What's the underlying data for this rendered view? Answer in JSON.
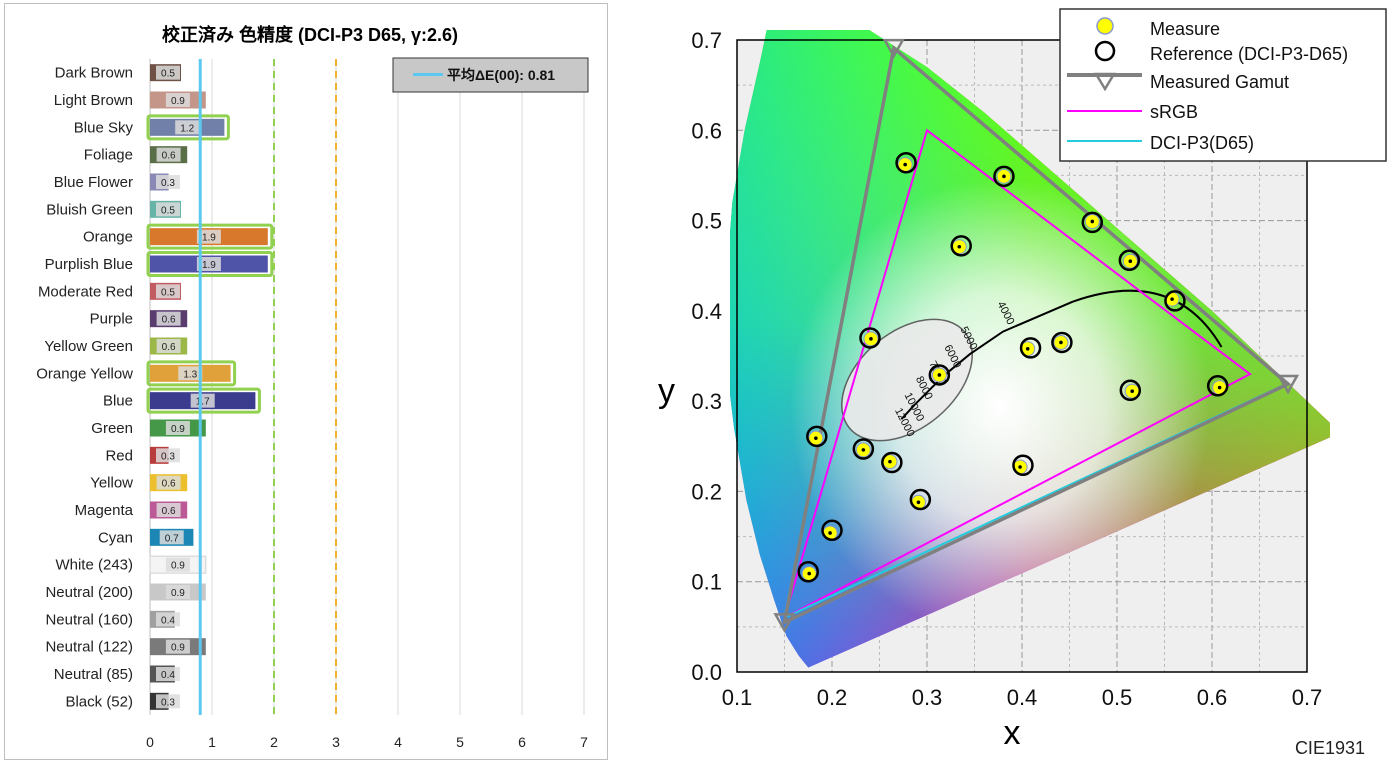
{
  "bar_chart": {
    "title": "校正済み 色精度 (DCI-P3 D65, γ:2.6)",
    "legend_label": "平均ΔE(00): 0.81",
    "mean_line_color": "#5bc8f0"
  },
  "gamut_chart": {
    "ylabel": "y",
    "xlabel": "x",
    "footer": "CIE1931",
    "legend": [
      {
        "name": "Measure",
        "icon": "yellow-dot-icon"
      },
      {
        "name": "Reference (DCI-P3-D65)",
        "icon": "black-circle-icon"
      },
      {
        "name": "Measured Gamut",
        "icon": "triangle-line-icon"
      },
      {
        "name": "sRGB",
        "icon": "magenta-line-icon"
      },
      {
        "name": "DCI-P3(D65)",
        "icon": "cyan-line-icon"
      }
    ]
  },
  "chart_data": [
    {
      "type": "bar",
      "title": "校正済み 色精度 (DCI-P3 D65, γ:2.6)",
      "categories": [
        "Dark Brown",
        "Light Brown",
        "Blue Sky",
        "Foliage",
        "Blue Flower",
        "Bluish Green",
        "Orange",
        "Purplish Blue",
        "Moderate Red",
        "Purple",
        "Yellow Green",
        "Orange Yellow",
        "Blue",
        "Green",
        "Red",
        "Yellow",
        "Magenta",
        "Cyan",
        "White (243)",
        "Neutral (200)",
        "Neutral (160)",
        "Neutral (122)",
        "Neutral (85)",
        "Black (52)"
      ],
      "values": [
        0.5,
        0.9,
        1.2,
        0.6,
        0.3,
        0.5,
        1.9,
        1.9,
        0.5,
        0.6,
        0.6,
        1.3,
        1.7,
        0.9,
        0.3,
        0.6,
        0.6,
        0.7,
        0.9,
        0.9,
        0.4,
        0.9,
        0.4,
        0.3
      ],
      "bar_colors": [
        "#6e5246",
        "#c4968a",
        "#7080a8",
        "#5a6e48",
        "#8a88b4",
        "#66b4a8",
        "#d8782c",
        "#5054a8",
        "#c25a62",
        "#5a3c6e",
        "#9cb848",
        "#e0a03a",
        "#3c3c8e",
        "#449848",
        "#b83c3c",
        "#ecc02c",
        "#bc5a98",
        "#1c86b4",
        "#f4f4f4",
        "#c8c8c8",
        "#a0a0a0",
        "#7a7a7a",
        "#555555",
        "#343434"
      ],
      "highlight": [
        false,
        false,
        true,
        false,
        false,
        false,
        true,
        true,
        false,
        false,
        false,
        true,
        true,
        false,
        false,
        false,
        false,
        false,
        false,
        false,
        false,
        false,
        false,
        false
      ],
      "xlim": [
        0,
        7
      ],
      "xticks": [
        0,
        1,
        2,
        3,
        4,
        5,
        6,
        7
      ],
      "mean": 0.81,
      "reference_lines": [
        {
          "value": 2,
          "color": "#92d050"
        },
        {
          "value": 3,
          "color": "#f0b030"
        }
      ],
      "grid": true
    },
    {
      "type": "scatter",
      "xlabel": "x",
      "ylabel": "y",
      "xlim": [
        0.1,
        0.7
      ],
      "ylim": [
        0.0,
        0.7
      ],
      "xticks": [
        "0.1",
        "0.2",
        "0.3",
        "0.4",
        "0.5",
        "0.6",
        "0.7"
      ],
      "yticks": [
        "0.0",
        "0.1",
        "0.2",
        "0.3",
        "0.4",
        "0.5",
        "0.6",
        "0.7"
      ],
      "grid": true,
      "legend_position": "top-right",
      "series": [
        {
          "name": "Measure",
          "color": "#ffff00",
          "points": [
            [
              0.277,
              0.562
            ],
            [
              0.381,
              0.549
            ],
            [
              0.474,
              0.499
            ],
            [
              0.514,
              0.455
            ],
            [
              0.558,
              0.413
            ],
            [
              0.334,
              0.471
            ],
            [
              0.241,
              0.369
            ],
            [
              0.406,
              0.358
            ],
            [
              0.441,
              0.365
            ],
            [
              0.313,
              0.329
            ],
            [
              0.183,
              0.259
            ],
            [
              0.233,
              0.246
            ],
            [
              0.261,
              0.233
            ],
            [
              0.398,
              0.227
            ],
            [
              0.516,
              0.311
            ],
            [
              0.608,
              0.315
            ],
            [
              0.291,
              0.188
            ],
            [
              0.198,
              0.154
            ],
            [
              0.176,
              0.109
            ]
          ]
        },
        {
          "name": "Reference (DCI-P3-D65)",
          "color": "#000000",
          "points": [
            [
              0.278,
              0.564
            ],
            [
              0.381,
              0.549
            ],
            [
              0.474,
              0.498
            ],
            [
              0.513,
              0.456
            ],
            [
              0.561,
              0.411
            ],
            [
              0.336,
              0.472
            ],
            [
              0.24,
              0.37
            ],
            [
              0.409,
              0.359
            ],
            [
              0.442,
              0.365
            ],
            [
              0.313,
              0.329
            ],
            [
              0.184,
              0.261
            ],
            [
              0.233,
              0.247
            ],
            [
              0.263,
              0.232
            ],
            [
              0.401,
              0.229
            ],
            [
              0.514,
              0.312
            ],
            [
              0.606,
              0.317
            ],
            [
              0.293,
              0.191
            ],
            [
              0.2,
              0.157
            ],
            [
              0.175,
              0.111
            ]
          ]
        },
        {
          "name": "Measured Gamut",
          "color": "#808080",
          "points": [
            [
              0.68,
              0.319
            ],
            [
              0.265,
              0.691
            ],
            [
              0.15,
              0.055
            ]
          ]
        },
        {
          "name": "sRGB",
          "color": "#ff00ff",
          "points": [
            [
              0.64,
              0.33
            ],
            [
              0.3,
              0.6
            ],
            [
              0.15,
              0.06
            ]
          ]
        },
        {
          "name": "DCI-P3(D65)",
          "color": "#22ccdd",
          "points": [
            [
              0.68,
              0.32
            ],
            [
              0.265,
              0.69
            ],
            [
              0.15,
              0.06
            ]
          ]
        }
      ],
      "planckian_labels": [
        "4000",
        "5000",
        "6000",
        "7000",
        "8000",
        "10000",
        "12000"
      ]
    }
  ]
}
